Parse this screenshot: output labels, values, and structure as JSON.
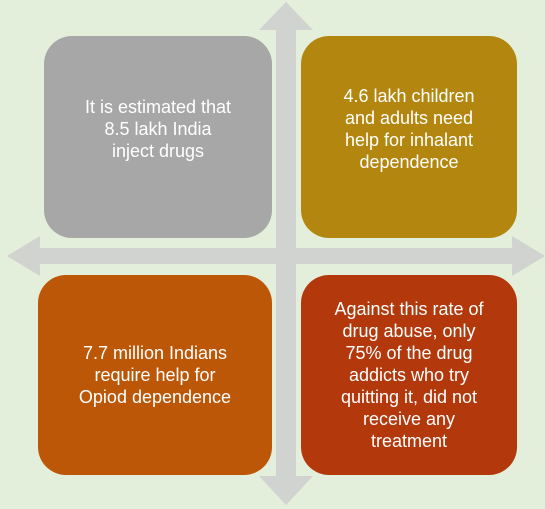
{
  "diagram": {
    "colors": {
      "background": "#e3efdb",
      "arrows": "#d0d3cf",
      "box_top_left": "#a7a7a7",
      "box_top_right": "#b3870f",
      "box_bottom_left": "#bc5708",
      "box_bottom_right": "#b3390c",
      "text": "#ffffff"
    },
    "boxes": {
      "top_left": "It is estimated that\n8.5 lakh India\ninject drugs",
      "top_right": "4.6 lakh children\nand adults need\nhelp for inhalant\ndependence",
      "bottom_left": "7.7 million Indians\nrequire help for\nOpiod dependence",
      "bottom_right": "Against this rate of\ndrug abuse, only\n75% of the drug\naddicts who try\nquitting it, did not\nreceive any\ntreatment"
    }
  }
}
